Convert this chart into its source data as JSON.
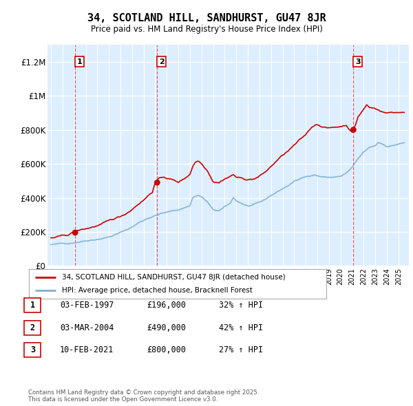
{
  "title": "34, SCOTLAND HILL, SANDHURST, GU47 8JR",
  "subtitle": "Price paid vs. HM Land Registry's House Price Index (HPI)",
  "ylim": [
    0,
    1300000
  ],
  "yticks": [
    0,
    200000,
    400000,
    600000,
    800000,
    1000000,
    1200000
  ],
  "ytick_labels": [
    "£0",
    "£200K",
    "£400K",
    "£600K",
    "£800K",
    "£1M",
    "£1.2M"
  ],
  "bg_color": "#ddeeff",
  "grid_color": "#ffffff",
  "sale_color": "#cc0000",
  "hpi_color": "#7aafd4",
  "vline_color": "#cc0000",
  "transaction_dates_dec": [
    1997.087,
    2004.17,
    2021.11
  ],
  "transaction_prices": [
    196000,
    490000,
    800000
  ],
  "transaction_labels": [
    "1",
    "2",
    "3"
  ],
  "legend_sale_label": "34, SCOTLAND HILL, SANDHURST, GU47 8JR (detached house)",
  "legend_hpi_label": "HPI: Average price, detached house, Bracknell Forest",
  "table_rows": [
    [
      "1",
      "03-FEB-1997",
      "£196,000",
      "32% ↑ HPI"
    ],
    [
      "2",
      "03-MAR-2004",
      "£490,000",
      "42% ↑ HPI"
    ],
    [
      "3",
      "10-FEB-2021",
      "£800,000",
      "27% ↑ HPI"
    ]
  ],
  "footer": "Contains HM Land Registry data © Crown copyright and database right 2025.\nThis data is licensed under the Open Government Licence v3.0.",
  "xlim_left": 1994.7,
  "xlim_right": 2025.9
}
